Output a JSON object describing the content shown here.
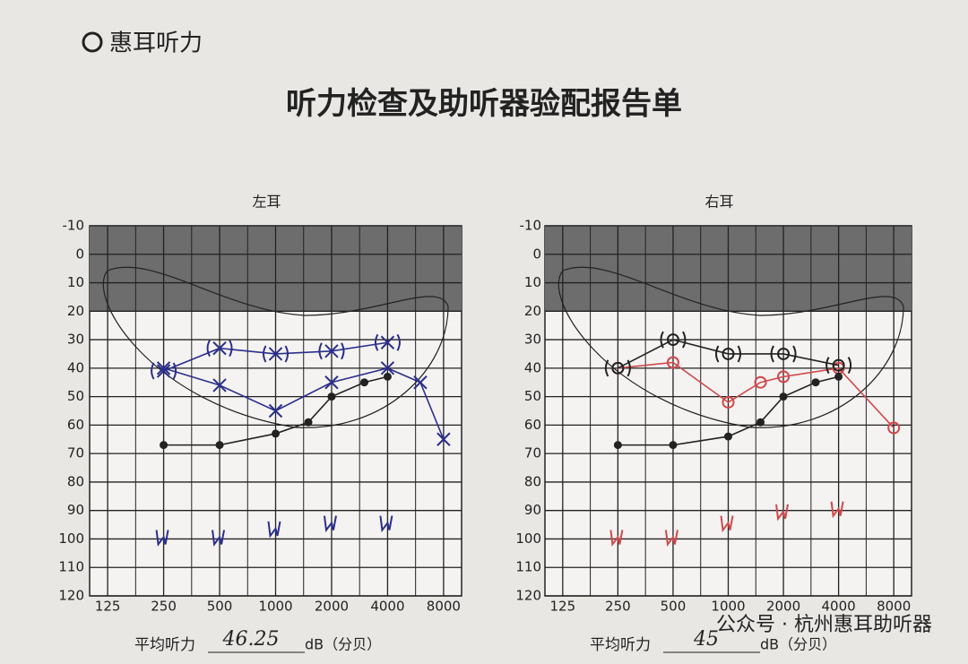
{
  "header": {
    "brand": "惠耳听力",
    "title": "听力检查及助听器验配报告单"
  },
  "chart_data": [
    {
      "type": "line",
      "title": "左耳",
      "xlog": true,
      "y_inverted": true,
      "grid": true,
      "xlim": [
        100,
        10000
      ],
      "xticks": [
        125,
        250,
        500,
        1000,
        2000,
        4000,
        8000
      ],
      "ylim": [
        -10,
        120
      ],
      "yticks": [
        -10,
        0,
        10,
        20,
        30,
        40,
        50,
        60,
        70,
        80,
        90,
        100,
        110,
        120
      ],
      "shaded_ylim": [
        -10,
        20
      ],
      "series": [
        {
          "color": "#2b2f8c",
          "marker": "x",
          "line": true,
          "x": [
            250,
            500,
            1000,
            2000,
            4000,
            6000,
            8000
          ],
          "values": [
            40,
            46,
            55,
            45,
            40,
            45,
            65
          ]
        },
        {
          "color": "#2b2f8c",
          "marker": "paren-x",
          "line": true,
          "x": [
            250,
            500,
            1000,
            2000,
            4000
          ],
          "values": [
            41,
            33,
            35,
            34,
            31
          ]
        },
        {
          "color": "#222222",
          "marker": "dot",
          "line": true,
          "x": [
            250,
            500,
            1000,
            1500,
            2000,
            3000,
            4000
          ],
          "values": [
            67,
            67,
            63,
            59,
            50,
            45,
            43
          ]
        },
        {
          "color": "#2b2f8c",
          "marker": "bone",
          "line": false,
          "x": [
            250,
            500,
            1000,
            2000,
            4000
          ],
          "values": [
            100,
            100,
            97,
            95,
            95
          ]
        }
      ],
      "average_label": "平均听力",
      "average_value": "46.25",
      "average_unit": "dB（分贝）"
    },
    {
      "type": "line",
      "title": "右耳",
      "xlog": true,
      "y_inverted": true,
      "grid": true,
      "xlim": [
        100,
        10000
      ],
      "xticks": [
        125,
        250,
        500,
        1000,
        2000,
        4000,
        8000
      ],
      "ylim": [
        -10,
        120
      ],
      "yticks": [
        -10,
        0,
        10,
        20,
        30,
        40,
        50,
        60,
        70,
        80,
        90,
        100,
        110,
        120
      ],
      "shaded_ylim": [
        -10,
        20
      ],
      "series": [
        {
          "color": "#d0484c",
          "marker": "o",
          "line": true,
          "x": [
            250,
            500,
            1000,
            1500,
            2000,
            4000,
            8000
          ],
          "values": [
            40,
            38,
            52,
            45,
            43,
            40,
            61
          ]
        },
        {
          "color": "#222222",
          "marker": "paren-o",
          "line": true,
          "x": [
            250,
            500,
            1000,
            2000,
            4000
          ],
          "values": [
            40,
            30,
            35,
            35,
            39
          ]
        },
        {
          "color": "#222222",
          "marker": "dot",
          "line": true,
          "x": [
            250,
            500,
            1000,
            1500,
            2000,
            3000,
            4000
          ],
          "values": [
            67,
            67,
            64,
            59,
            50,
            45,
            43
          ]
        },
        {
          "color": "#d0484c",
          "marker": "bone",
          "line": false,
          "x": [
            250,
            500,
            1000,
            2000,
            4000
          ],
          "values": [
            100,
            100,
            95,
            91,
            90
          ]
        }
      ],
      "average_label": "平均听力",
      "average_value": "45",
      "average_unit": "dB（分贝）"
    }
  ],
  "watermark": "公众号 · 杭州惠耳助听器"
}
